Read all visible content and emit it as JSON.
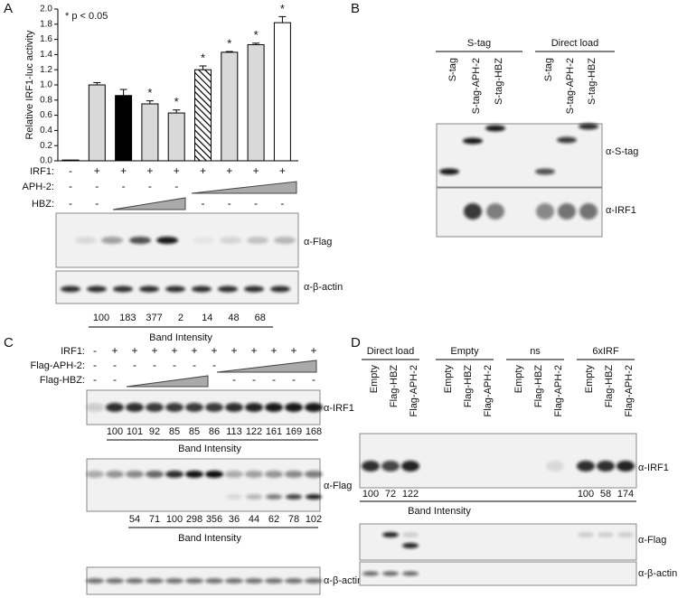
{
  "panel_labels": [
    "A",
    "B",
    "C",
    "D"
  ],
  "chart_data": {
    "type": "bar",
    "ylabel": "Relative IRF1-luc activity",
    "annotation": "* p < 0.05",
    "values": [
      0.01,
      1.0,
      0.86,
      0.75,
      0.63,
      1.2,
      1.43,
      1.53,
      1.82
    ],
    "errors": [
      0,
      0.03,
      0.08,
      0.04,
      0.04,
      0.05,
      0.01,
      0.02,
      0.08
    ],
    "fills": [
      "#d9d9d9",
      "#d9d9d9",
      "#000000",
      "#d9d9d9",
      "#d9d9d9",
      "hatch",
      "#d9d9d9",
      "#d9d9d9",
      "#ffffff"
    ],
    "stars": [
      null,
      null,
      null,
      "*",
      "*",
      "*",
      "*",
      "*",
      "*"
    ],
    "ylim": [
      0,
      2
    ],
    "yticks": [
      {
        "value": 0,
        "label": "0.0"
      },
      0.2,
      0.4,
      0.6,
      0.8,
      {
        "value": 1,
        "label": "1.0"
      },
      1.2,
      1.4,
      1.6,
      1.8,
      {
        "value": 2,
        "label": "2.0"
      }
    ]
  },
  "panel_a": {
    "conditions": [
      {
        "label": "IRF1:",
        "values": [
          "-",
          "+",
          "+",
          "+",
          "+",
          "+",
          "+",
          "+",
          "+"
        ]
      },
      {
        "label": "APH-2:",
        "values": [
          "-",
          "-",
          "-",
          "-",
          "-",
          null,
          null,
          null,
          null
        ]
      },
      {
        "label": "HBZ:",
        "values": [
          "-",
          "-",
          null,
          null,
          null,
          "-",
          "-",
          "-",
          "-"
        ]
      }
    ],
    "blots": [
      {
        "label": "α-Flag"
      },
      {
        "label": "α-β-actin"
      }
    ],
    "band_intensity": {
      "label": "Band Intensity",
      "values": [
        100,
        183,
        377,
        2,
        14,
        48,
        68
      ]
    }
  },
  "panel_b": {
    "groups": [
      {
        "label": "S-tag",
        "lanes": [
          "S-tag",
          "S-tag-APH-2",
          "S-tag-HBZ"
        ]
      },
      {
        "label": "Direct load",
        "lanes": [
          "S-tag",
          "S-tag-APH-2",
          "S-tag-HBZ"
        ]
      }
    ],
    "blots": [
      {
        "label": "α-S-tag"
      },
      {
        "label": "α-IRF1"
      }
    ]
  },
  "panel_c": {
    "conditions": [
      {
        "label": "IRF1:",
        "values": [
          "-",
          "+",
          "+",
          "+",
          "+",
          "+",
          "+",
          "+",
          "+",
          "+",
          "+",
          "+"
        ]
      },
      {
        "label": "Flag-APH-2:",
        "values": [
          "-",
          "-",
          "-",
          "-",
          "-",
          "-",
          "-",
          null,
          null,
          null,
          null,
          null
        ]
      },
      {
        "label": "Flag-HBZ:",
        "values": [
          "-",
          "-",
          null,
          null,
          null,
          null,
          null,
          "-",
          "-",
          "-",
          "-",
          "-"
        ]
      }
    ],
    "blots": [
      {
        "label": "α-IRF1",
        "band_intensity": {
          "label": "Band Intensity",
          "values": [
            null,
            100,
            101,
            92,
            85,
            85,
            86,
            113,
            122,
            161,
            169,
            168
          ]
        }
      },
      {
        "label": "α-Flag",
        "band_intensity": {
          "label": "Band Intensity",
          "values": [
            null,
            null,
            54,
            71,
            100,
            298,
            356,
            36,
            44,
            62,
            78,
            102
          ]
        }
      },
      {
        "label": "α-β-actin"
      }
    ]
  },
  "panel_d": {
    "groups": [
      {
        "label": "Direct load",
        "lanes": [
          "Empty",
          "Flag-HBZ",
          "Flag-APH-2"
        ]
      },
      {
        "label": "Empty",
        "lanes": [
          "Empty",
          "Flag-HBZ",
          "Flag-APH-2"
        ]
      },
      {
        "label": "ns",
        "lanes": [
          "Empty",
          "Flag-HBZ",
          "Flag-APH-2"
        ]
      },
      {
        "label": "6xIRF",
        "lanes": [
          "Empty",
          "Flag-HBZ",
          "Flag-APH-2"
        ]
      }
    ],
    "blots": [
      {
        "label": "α-IRF1",
        "band_intensity": {
          "label": "Band Intensity",
          "values": [
            100,
            72,
            122,
            null,
            null,
            null,
            null,
            null,
            null,
            100,
            58,
            174
          ]
        }
      },
      {
        "label": "α-Flag"
      },
      {
        "label": "α-β-actin"
      }
    ]
  }
}
